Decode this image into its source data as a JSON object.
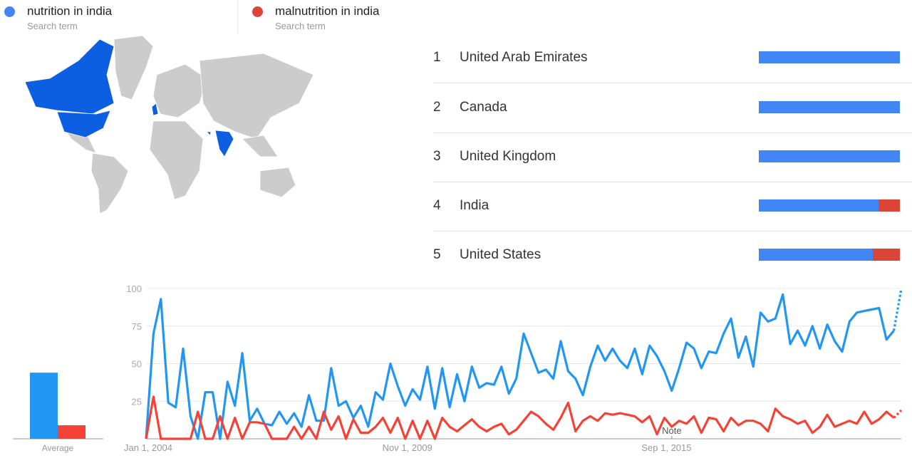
{
  "legend": [
    {
      "term": "nutrition in india",
      "type": "Search term",
      "color": "#4285f4"
    },
    {
      "term": "malnutrition in india",
      "type": "Search term",
      "color": "#db4437"
    }
  ],
  "map": {
    "highlighted_regions": [
      "Canada",
      "United States",
      "United Kingdom",
      "India",
      "United Arab Emirates"
    ],
    "highlight_color": "#0b5fe0",
    "base_color": "#cccccc"
  },
  "ranking": [
    {
      "rank": "1",
      "name": "United Arab Emirates",
      "share": [
        100,
        0
      ]
    },
    {
      "rank": "2",
      "name": "Canada",
      "share": [
        100,
        0
      ]
    },
    {
      "rank": "3",
      "name": "United Kingdom",
      "share": [
        100,
        0
      ]
    },
    {
      "rank": "4",
      "name": "India",
      "share": [
        85,
        15
      ]
    },
    {
      "rank": "5",
      "name": "United States",
      "share": [
        81,
        19
      ]
    }
  ],
  "chart_data": [
    {
      "type": "bar",
      "categories": [
        "nutrition in india",
        "malnutrition in india"
      ],
      "values": [
        44,
        9
      ],
      "xlabel": "Average",
      "colors": [
        "#2196f3",
        "#f44336"
      ]
    },
    {
      "type": "line",
      "ylim": [
        0,
        100
      ],
      "y_ticks": [
        "100",
        "75",
        "50",
        "25"
      ],
      "x_ticks": [
        {
          "label": "Jan 1, 2004",
          "date": "2004-01"
        },
        {
          "label": "Nov 1, 2009",
          "date": "2009-11"
        },
        {
          "label": "Sep 1, 2015",
          "date": "2015-09"
        }
      ],
      "annotation": "Note",
      "annotation_date": "2015-11",
      "grid": true,
      "last_point_partial": true,
      "x": [
        "2004-01",
        "2004-03",
        "2004-05",
        "2004-07",
        "2004-09",
        "2004-11",
        "2005-01",
        "2005-03",
        "2005-05",
        "2005-07",
        "2005-09",
        "2005-11",
        "2006-01",
        "2006-03",
        "2006-05",
        "2006-07",
        "2006-09",
        "2006-11",
        "2007-01",
        "2007-03",
        "2007-05",
        "2007-07",
        "2007-09",
        "2007-11",
        "2008-01",
        "2008-03",
        "2008-05",
        "2008-07",
        "2008-09",
        "2008-11",
        "2009-01",
        "2009-03",
        "2009-05",
        "2009-07",
        "2009-09",
        "2009-11",
        "2010-01",
        "2010-03",
        "2010-05",
        "2010-07",
        "2010-09",
        "2010-11",
        "2011-01",
        "2011-03",
        "2011-05",
        "2011-07",
        "2011-09",
        "2011-11",
        "2012-01",
        "2012-03",
        "2012-05",
        "2012-07",
        "2012-09",
        "2012-11",
        "2013-01",
        "2013-03",
        "2013-05",
        "2013-07",
        "2013-09",
        "2013-11",
        "2014-01",
        "2014-03",
        "2014-05",
        "2014-07",
        "2014-09",
        "2014-11",
        "2015-01",
        "2015-03",
        "2015-05",
        "2015-07",
        "2015-09",
        "2015-11",
        "2016-01",
        "2016-03",
        "2016-05",
        "2016-07",
        "2016-09",
        "2016-11",
        "2017-01",
        "2017-03",
        "2017-05",
        "2017-07",
        "2017-09",
        "2017-11",
        "2018-01",
        "2018-03",
        "2018-05",
        "2018-07",
        "2018-09",
        "2018-11",
        "2019-01",
        "2019-03",
        "2019-05",
        "2019-07",
        "2019-09",
        "2019-11",
        "2020-01",
        "2020-03",
        "2020-05",
        "2020-07",
        "2020-09",
        "2020-11",
        "2021-01"
      ],
      "series": [
        {
          "name": "nutrition in india",
          "color": "#2196f3",
          "values": [
            0,
            70,
            93,
            24,
            21,
            60,
            15,
            0,
            31,
            31,
            0,
            38,
            22,
            57,
            12,
            20,
            10,
            9,
            18,
            10,
            17,
            8,
            29,
            12,
            12,
            47,
            22,
            25,
            14,
            22,
            8,
            31,
            26,
            50,
            35,
            22,
            33,
            26,
            48,
            20,
            47,
            21,
            43,
            25,
            48,
            34,
            37,
            36,
            48,
            30,
            40,
            70,
            57,
            44,
            46,
            40,
            65,
            45,
            40,
            29,
            48,
            62,
            52,
            60,
            52,
            47,
            60,
            43,
            62,
            55,
            45,
            32,
            47,
            64,
            60,
            47,
            58,
            57,
            70,
            80,
            54,
            68,
            48,
            84,
            78,
            80,
            96,
            63,
            72,
            62,
            75,
            60,
            76,
            65,
            58,
            78,
            84,
            85,
            86,
            87,
            66,
            72,
            100
          ]
        },
        {
          "name": "malnutrition in india",
          "color": "#f44336",
          "values": [
            0,
            28,
            0,
            0,
            0,
            0,
            0,
            18,
            0,
            0,
            15,
            0,
            14,
            0,
            11,
            11,
            10,
            0,
            0,
            0,
            8,
            0,
            8,
            0,
            18,
            6,
            15,
            0,
            13,
            4,
            4,
            8,
            14,
            4,
            14,
            0,
            12,
            0,
            12,
            0,
            14,
            8,
            5,
            9,
            13,
            8,
            5,
            8,
            10,
            3,
            6,
            12,
            18,
            15,
            10,
            6,
            14,
            24,
            5,
            12,
            15,
            12,
            17,
            16,
            17,
            16,
            15,
            11,
            15,
            3,
            14,
            8,
            12,
            10,
            15,
            4,
            14,
            13,
            5,
            14,
            9,
            12,
            12,
            10,
            5,
            20,
            15,
            13,
            10,
            12,
            4,
            8,
            16,
            8,
            10,
            12,
            10,
            18,
            10,
            13,
            18,
            14,
            19
          ]
        }
      ]
    }
  ]
}
